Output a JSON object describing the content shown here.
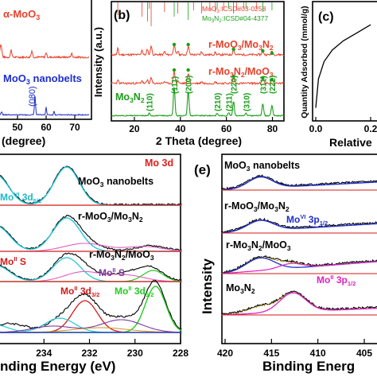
{
  "chart_data": [
    {
      "panel": "a",
      "type": "line",
      "xlabel": "(degree)",
      "x_ticks": [
        "50",
        "60",
        "70"
      ],
      "series": [
        {
          "name": "α-MoO3",
          "color": "#e8402a"
        },
        {
          "name": "MoO3 nanobelts",
          "color": "#1f2ecc"
        }
      ],
      "annotations": [
        "(080)"
      ]
    },
    {
      "panel": "b",
      "type": "line",
      "xlabel": "2 Theta (degree)",
      "ylabel": "Intensity (a.u.)",
      "x_ticks": [
        "20",
        "40",
        "60",
        "80"
      ],
      "xlim": [
        10,
        85
      ],
      "reference_legend": [
        "MoO3:ICSD#03-0258",
        "Mo3N2:ICSD#04-4377"
      ],
      "series": [
        {
          "name": "r-MoO3/Mo3N2",
          "color": "#e8402a"
        },
        {
          "name": "r-Mo3N2/MoO3",
          "color": "#e8402a"
        },
        {
          "name": "Mo3N2",
          "color": "#1a9e1a"
        }
      ],
      "peaks": [
        {
          "x": 37.3,
          "label": "(111)"
        },
        {
          "x": 43.4,
          "label": "(200)"
        },
        {
          "x": 63.1,
          "label": "(220)"
        },
        {
          "x": 75.8,
          "label": "(311)"
        },
        {
          "x": 79.8,
          "label": "(222)"
        },
        {
          "x": 61.0,
          "label": "(210)"
        },
        {
          "x": 56.0,
          "label": "(211)"
        },
        {
          "x": 26.5,
          "label": "(110)"
        },
        {
          "x": 68.5,
          "label": "(310)"
        }
      ]
    },
    {
      "panel": "c",
      "type": "line",
      "xlabel": "Relative",
      "ylabel": "Quantity Adsorbed (mmol/g)",
      "x_ticks": [
        "0.0",
        "0.2"
      ],
      "xlim": [
        0.0,
        0.3
      ],
      "series": [
        {
          "name": "",
          "x": [
            0.0,
            0.01,
            0.03,
            0.06,
            0.1,
            0.15,
            0.2,
            0.25,
            0.3
          ],
          "y": [
            0.1,
            0.35,
            0.5,
            0.6,
            0.68,
            0.75,
            0.82,
            0.88,
            0.94
          ]
        }
      ]
    },
    {
      "panel": "d",
      "type": "line",
      "xlabel": "Binding Energy (eV)",
      "x_ticks": [
        "234",
        "232",
        "230",
        "228"
      ],
      "xlim": [
        236,
        228
      ],
      "title": "Mo 3d",
      "series": [
        {
          "name": "MoO3 nanobelts"
        },
        {
          "name": "r-MoO3/Mo3N2"
        },
        {
          "name": "r-Mo3N2/MoO3"
        },
        {
          "name": "Mo3N2"
        }
      ],
      "annotations": [
        "MoVI 3d5/2",
        "MoII S",
        "MoII S",
        "MoII 3d3/2",
        "MoII 3d5/2"
      ]
    },
    {
      "panel": "e",
      "type": "line",
      "xlabel": "Binding Energ",
      "ylabel": "Intensity",
      "x_ticks": [
        "420",
        "415",
        "410",
        "405"
      ],
      "xlim": [
        420,
        400
      ],
      "series": [
        {
          "name": "MoO3 nanobelts"
        },
        {
          "name": "r-MoO3/Mo3N2"
        },
        {
          "name": "r-Mo3N2/MoO3"
        },
        {
          "name": "Mo3N2"
        }
      ],
      "annotations": [
        "MoVI 3p1/2",
        "MoII 3p1/2"
      ]
    }
  ],
  "panels": {
    "a": {
      "legend1": "α-MoO",
      "legend1_sub": "3",
      "legend2": "MoO",
      "legend2_sub": "3",
      "legend2_tail": " nanobelts",
      "peak": "(080)",
      "xlabel": "(degree)",
      "ticks": [
        "50",
        "60",
        "70"
      ]
    },
    "b": {
      "tag": "(b)",
      "ref1": "MoO",
      "ref1_sub": "3",
      "ref1_tail": ":ICSD#03-0258",
      "ref2": "Mo",
      "ref2_sub": "3",
      "ref2_mid": "N",
      "ref2_sub2": "2",
      "ref2_tail": ":ICSD#04-4377",
      "ylabel": "Intensity (a.u.)",
      "xlabel": "2 Theta (degree)",
      "ticks": [
        "20",
        "40",
        "60",
        "80"
      ],
      "s1a": "r-MoO",
      "s1b": "3",
      "s1c": "/Mo",
      "s1d": "3",
      "s1e": "N",
      "s1f": "2",
      "s2a": "r-Mo",
      "s2b": "3",
      "s2c": "N",
      "s2d": "2",
      "s2e": "/MoO",
      "s2f": "3",
      "s3a": "Mo",
      "s3b": "3",
      "s3c": "N",
      "s3d": "2",
      "hkl": [
        "(110)",
        "(111)",
        "(200)",
        "(210)",
        "(211)",
        "(220)",
        "(310)",
        "(311)",
        "(222)"
      ]
    },
    "c": {
      "tag": "(c)",
      "ylabel": "Quantity Adsorbed (mmol/g)",
      "xlabel": "Relative",
      "ticks": [
        "0.0",
        "0.2"
      ]
    },
    "d": {
      "title": "Mo 3d",
      "l1a": "MoO",
      "l1b": "3",
      "l1c": " nanobelts",
      "l2a": "r-MoO",
      "l2b": "3",
      "l2c": "/Mo",
      "l2d": "3",
      "l2e": "N",
      "l2f": "2",
      "l3a": "r-Mo",
      "l3b": "3",
      "l3c": "N",
      "l3d": "2",
      "l3e": "/MoO",
      "l3f": "3",
      "a1a": "Mo",
      "a1b": "VI",
      "a1c": " 3d",
      "a1d": "5/2",
      "a2a": "Mo",
      "a2b": "II",
      "a2c": " S",
      "a3a": "Mo",
      "a3b": "II",
      "a3c": " S",
      "a4a": "Mo",
      "a4b": "II",
      "a4c": " 3d",
      "a4d": "3/2",
      "a5a": "Mo",
      "a5b": "II",
      "a5c": " 3d",
      "a5d": "5/2",
      "xlabel": "nding Energy (eV)",
      "ticks": [
        "234",
        "232",
        "230",
        "228"
      ]
    },
    "e": {
      "tag": "(e)",
      "l1a": "MoO",
      "l1b": "3",
      "l1c": " nanobelts",
      "l2a": "r-MoO",
      "l2b": "3",
      "l2c": "/Mo",
      "l2d": "3",
      "l2e": "N",
      "l2f": "2",
      "l3a": "r-Mo",
      "l3b": "3",
      "l3c": "N",
      "l3d": "2",
      "l3e": "/MoO",
      "l3f": "3",
      "l4a": "Mo",
      "l4b": "3",
      "l4c": "N",
      "l4d": "2",
      "a1a": "Mo",
      "a1b": "VI",
      "a1c": " 3p",
      "a1d": "1/2",
      "a2a": "Mo",
      "a2b": "II",
      "a2c": " 3p",
      "a2d": "1/2",
      "ylabel": "Intensity",
      "xlabel": "Binding Energ",
      "ticks": [
        "420",
        "415",
        "410",
        "405"
      ]
    }
  }
}
